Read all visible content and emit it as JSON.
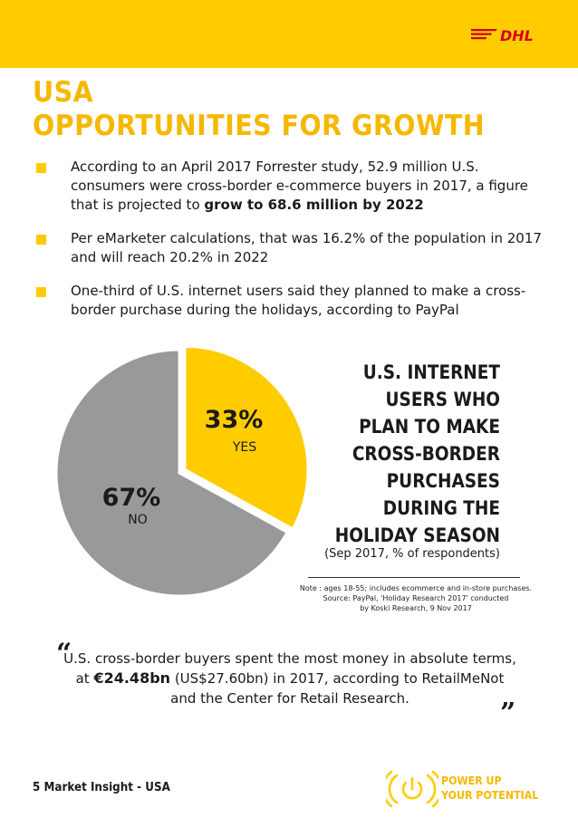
{
  "header": {
    "logo_text": "DHL",
    "accent_color": "#ffcc00",
    "logo_color": "#d40511"
  },
  "heading": {
    "line1": "USA",
    "line2": "OPPORTUNITIES FOR GROWTH"
  },
  "bullets": [
    {
      "text": "According to an April 2017 Forrester study, 52.9 million U.S. consumers were cross-border e-commerce buyers in 2017, a figure that is projected to ",
      "bold": "grow to 68.6 million by 2022"
    },
    {
      "text": "Per eMarketer calculations, that was 16.2% of the population in 2017 and will reach 20.2% in 2022",
      "bold": ""
    },
    {
      "text": "One-third of U.S. internet users said they planned to make a cross-border purchase during the holidays, according to PayPal",
      "bold": ""
    }
  ],
  "chart_data": {
    "type": "pie",
    "title_lines": [
      "U.S. INTERNET",
      "USERS WHO",
      "PLAN TO MAKE",
      "CROSS-BORDER",
      "PURCHASES",
      "DURING THE",
      "HOLIDAY SEASON"
    ],
    "subtitle": "(Sep 2017, % of respondents)",
    "slices": [
      {
        "label": "YES",
        "value": 33,
        "value_label": "33%",
        "color": "#ffcc00"
      },
      {
        "label": "NO",
        "value": 67,
        "value_label": "67%",
        "color": "#999999"
      }
    ],
    "note_lines": [
      "Note : ages 18-55; includes ecommerce and in-store purchases.",
      "Source: PayPal, 'Holiday Research 2017' conducted",
      "by Koski Research, 9 Nov 2017"
    ]
  },
  "quote": {
    "before": "U.S. cross-border buyers spent the most money in absolute terms, at ",
    "bold": "€24.48bn",
    "after": " (US$27.60bn) in 2017, according to RetailMeNot and the Center for Retail Research.",
    "open_mark": "“",
    "close_mark": "”"
  },
  "footer": {
    "page_label": "5  Market Insight - USA",
    "tagline_line1": "POWER UP",
    "tagline_line2": "YOUR POTENTIAL"
  }
}
